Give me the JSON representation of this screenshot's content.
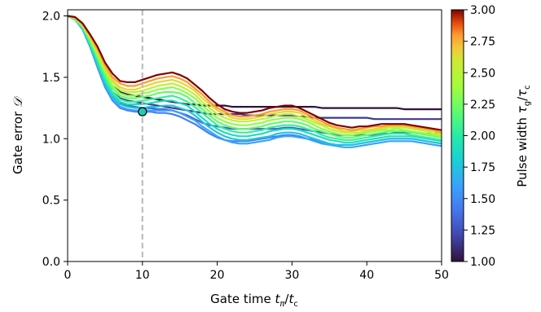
{
  "chart_data": {
    "type": "line",
    "xlabel": {
      "main": "Gate time ",
      "var": "t",
      "sub": "π",
      "slash": "/",
      "var2": "t",
      "sub2": "c"
    },
    "ylabel": {
      "main": "Gate error ",
      "var": "𝒟"
    },
    "xlim": [
      0,
      50
    ],
    "ylim": [
      0,
      2.05
    ],
    "xticks": [
      0,
      10,
      20,
      30,
      40,
      50
    ],
    "xtick_labels": [
      "0",
      "10",
      "20",
      "30",
      "40",
      "50"
    ],
    "yticks": [
      0.0,
      0.5,
      1.0,
      1.5,
      2.0
    ],
    "ytick_labels": [
      "0.0",
      "0.5",
      "1.0",
      "1.5",
      "2.0"
    ],
    "vline_x": 10,
    "marker": {
      "x": 10,
      "y": 1.22
    },
    "colorbar": {
      "label": {
        "main": "Pulse width ",
        "var": "τ",
        "sub": "g",
        "slash": "/",
        "var2": "τ",
        "sub2": "c"
      },
      "min": 1.0,
      "max": 3.0,
      "ticks": [
        1.0,
        1.25,
        1.5,
        1.75,
        2.0,
        2.25,
        2.5,
        2.75,
        3.0
      ],
      "tick_labels": [
        "1.00",
        "1.25",
        "1.50",
        "1.75",
        "2.00",
        "2.25",
        "2.50",
        "2.75",
        "3.00"
      ],
      "colormap": "turbo"
    },
    "x": [
      0,
      1,
      2,
      3,
      4,
      5,
      6,
      7,
      8,
      9,
      10,
      11,
      12,
      13,
      14,
      15,
      16,
      17,
      18,
      19,
      20,
      21,
      22,
      23,
      24,
      25,
      26,
      27,
      28,
      29,
      30,
      31,
      32,
      33,
      34,
      35,
      36,
      37,
      38,
      39,
      40,
      41,
      42,
      43,
      44,
      45,
      46,
      47,
      48,
      49,
      50
    ],
    "series": [
      {
        "param": 1.0,
        "values": [
          2.0,
          1.98,
          1.92,
          1.8,
          1.66,
          1.52,
          1.43,
          1.38,
          1.36,
          1.35,
          1.34,
          1.33,
          1.32,
          1.31,
          1.3,
          1.29,
          1.28,
          1.28,
          1.27,
          1.27,
          1.27,
          1.27,
          1.26,
          1.26,
          1.26,
          1.26,
          1.26,
          1.26,
          1.26,
          1.26,
          1.26,
          1.26,
          1.26,
          1.26,
          1.25,
          1.25,
          1.25,
          1.25,
          1.25,
          1.25,
          1.25,
          1.25,
          1.25,
          1.25,
          1.25,
          1.24,
          1.24,
          1.24,
          1.24,
          1.24,
          1.24
        ]
      },
      {
        "param": 1.15,
        "values": [
          2.0,
          1.98,
          1.91,
          1.78,
          1.63,
          1.48,
          1.38,
          1.33,
          1.31,
          1.3,
          1.29,
          1.28,
          1.27,
          1.26,
          1.25,
          1.24,
          1.23,
          1.22,
          1.21,
          1.2,
          1.2,
          1.2,
          1.2,
          1.2,
          1.19,
          1.19,
          1.19,
          1.19,
          1.19,
          1.19,
          1.19,
          1.18,
          1.18,
          1.17,
          1.17,
          1.17,
          1.17,
          1.17,
          1.17,
          1.17,
          1.17,
          1.16,
          1.16,
          1.16,
          1.16,
          1.16,
          1.16,
          1.16,
          1.16,
          1.16,
          1.16
        ]
      },
      {
        "param": 1.3,
        "values": [
          2.0,
          1.97,
          1.9,
          1.76,
          1.6,
          1.44,
          1.34,
          1.29,
          1.27,
          1.26,
          1.25,
          1.25,
          1.24,
          1.24,
          1.23,
          1.21,
          1.19,
          1.16,
          1.13,
          1.11,
          1.1,
          1.09,
          1.08,
          1.08,
          1.08,
          1.08,
          1.08,
          1.08,
          1.08,
          1.09,
          1.09,
          1.08,
          1.07,
          1.06,
          1.05,
          1.04,
          1.03,
          1.03,
          1.03,
          1.03,
          1.03,
          1.03,
          1.04,
          1.04,
          1.05,
          1.05,
          1.05,
          1.05,
          1.04,
          1.04,
          1.04
        ]
      },
      {
        "param": 1.45,
        "values": [
          2.0,
          1.97,
          1.89,
          1.75,
          1.58,
          1.42,
          1.31,
          1.25,
          1.23,
          1.22,
          1.22,
          1.22,
          1.21,
          1.21,
          1.2,
          1.18,
          1.15,
          1.12,
          1.08,
          1.04,
          1.01,
          0.99,
          0.98,
          0.98,
          0.98,
          0.99,
          1.0,
          1.01,
          1.02,
          1.03,
          1.03,
          1.02,
          1.0,
          0.99,
          0.97,
          0.96,
          0.95,
          0.95,
          0.95,
          0.96,
          0.97,
          0.98,
          0.99,
          1.0,
          1.0,
          1.0,
          1.0,
          0.99,
          0.98,
          0.97,
          0.96
        ]
      },
      {
        "param": 1.6,
        "values": [
          2.0,
          1.97,
          1.89,
          1.75,
          1.59,
          1.43,
          1.32,
          1.26,
          1.24,
          1.23,
          1.23,
          1.23,
          1.23,
          1.23,
          1.23,
          1.21,
          1.18,
          1.15,
          1.1,
          1.06,
          1.02,
          0.99,
          0.97,
          0.96,
          0.96,
          0.97,
          0.98,
          0.99,
          1.01,
          1.02,
          1.02,
          1.01,
          1.0,
          0.98,
          0.96,
          0.95,
          0.94,
          0.93,
          0.93,
          0.94,
          0.95,
          0.96,
          0.97,
          0.98,
          0.98,
          0.98,
          0.98,
          0.97,
          0.96,
          0.95,
          0.94
        ]
      },
      {
        "param": 1.75,
        "values": [
          2.0,
          1.97,
          1.9,
          1.76,
          1.6,
          1.45,
          1.34,
          1.28,
          1.26,
          1.25,
          1.25,
          1.26,
          1.26,
          1.27,
          1.27,
          1.25,
          1.23,
          1.19,
          1.14,
          1.09,
          1.05,
          1.02,
          1.0,
          0.99,
          0.99,
          1.0,
          1.01,
          1.02,
          1.04,
          1.05,
          1.05,
          1.04,
          1.02,
          1.0,
          0.98,
          0.96,
          0.95,
          0.95,
          0.95,
          0.96,
          0.97,
          0.98,
          0.99,
          1.0,
          1.0,
          1.0,
          1.0,
          0.99,
          0.98,
          0.97,
          0.96
        ]
      },
      {
        "param": 1.9,
        "values": [
          2.0,
          1.97,
          1.9,
          1.77,
          1.62,
          1.47,
          1.36,
          1.3,
          1.28,
          1.28,
          1.28,
          1.29,
          1.3,
          1.31,
          1.31,
          1.29,
          1.27,
          1.22,
          1.17,
          1.12,
          1.08,
          1.05,
          1.03,
          1.02,
          1.02,
          1.03,
          1.04,
          1.06,
          1.07,
          1.08,
          1.08,
          1.07,
          1.05,
          1.03,
          1.01,
          0.99,
          0.98,
          0.97,
          0.97,
          0.98,
          0.99,
          1.0,
          1.01,
          1.02,
          1.02,
          1.02,
          1.02,
          1.01,
          1.0,
          0.99,
          0.98
        ]
      },
      {
        "param": 2.05,
        "values": [
          2.0,
          1.97,
          1.91,
          1.78,
          1.64,
          1.49,
          1.38,
          1.32,
          1.3,
          1.3,
          1.31,
          1.32,
          1.33,
          1.34,
          1.35,
          1.33,
          1.3,
          1.26,
          1.21,
          1.16,
          1.11,
          1.08,
          1.06,
          1.05,
          1.05,
          1.06,
          1.07,
          1.09,
          1.1,
          1.11,
          1.11,
          1.1,
          1.08,
          1.06,
          1.03,
          1.01,
          1.0,
          0.99,
          0.99,
          1.0,
          1.01,
          1.02,
          1.03,
          1.04,
          1.04,
          1.04,
          1.03,
          1.02,
          1.01,
          1.0,
          0.99
        ]
      },
      {
        "param": 2.2,
        "values": [
          2.0,
          1.98,
          1.91,
          1.8,
          1.66,
          1.52,
          1.41,
          1.35,
          1.33,
          1.33,
          1.34,
          1.35,
          1.37,
          1.38,
          1.38,
          1.37,
          1.34,
          1.29,
          1.24,
          1.19,
          1.14,
          1.11,
          1.09,
          1.08,
          1.08,
          1.09,
          1.1,
          1.12,
          1.13,
          1.14,
          1.14,
          1.13,
          1.11,
          1.08,
          1.06,
          1.04,
          1.02,
          1.01,
          1.01,
          1.02,
          1.03,
          1.04,
          1.05,
          1.06,
          1.06,
          1.06,
          1.05,
          1.04,
          1.03,
          1.02,
          1.01
        ]
      },
      {
        "param": 2.35,
        "values": [
          2.0,
          1.98,
          1.92,
          1.81,
          1.68,
          1.54,
          1.43,
          1.37,
          1.35,
          1.35,
          1.37,
          1.38,
          1.4,
          1.41,
          1.42,
          1.4,
          1.37,
          1.33,
          1.27,
          1.22,
          1.17,
          1.14,
          1.12,
          1.11,
          1.11,
          1.12,
          1.13,
          1.15,
          1.16,
          1.17,
          1.17,
          1.16,
          1.14,
          1.11,
          1.08,
          1.06,
          1.04,
          1.03,
          1.03,
          1.04,
          1.05,
          1.06,
          1.07,
          1.07,
          1.08,
          1.07,
          1.06,
          1.05,
          1.04,
          1.03,
          1.02
        ]
      },
      {
        "param": 2.5,
        "values": [
          2.0,
          1.98,
          1.92,
          1.82,
          1.7,
          1.56,
          1.46,
          1.4,
          1.38,
          1.38,
          1.39,
          1.41,
          1.43,
          1.44,
          1.45,
          1.43,
          1.4,
          1.36,
          1.3,
          1.25,
          1.2,
          1.17,
          1.15,
          1.14,
          1.14,
          1.15,
          1.16,
          1.17,
          1.19,
          1.2,
          1.2,
          1.18,
          1.16,
          1.13,
          1.11,
          1.08,
          1.06,
          1.05,
          1.05,
          1.05,
          1.06,
          1.07,
          1.08,
          1.09,
          1.09,
          1.09,
          1.08,
          1.07,
          1.06,
          1.04,
          1.03
        ]
      },
      {
        "param": 2.65,
        "values": [
          2.0,
          1.98,
          1.93,
          1.83,
          1.71,
          1.58,
          1.48,
          1.42,
          1.4,
          1.4,
          1.42,
          1.44,
          1.46,
          1.47,
          1.48,
          1.46,
          1.43,
          1.39,
          1.33,
          1.28,
          1.23,
          1.2,
          1.17,
          1.16,
          1.16,
          1.17,
          1.18,
          1.2,
          1.21,
          1.22,
          1.22,
          1.21,
          1.18,
          1.15,
          1.12,
          1.1,
          1.08,
          1.06,
          1.06,
          1.07,
          1.07,
          1.08,
          1.09,
          1.1,
          1.1,
          1.1,
          1.09,
          1.08,
          1.07,
          1.06,
          1.04
        ]
      },
      {
        "param": 2.8,
        "values": [
          2.0,
          1.99,
          1.93,
          1.84,
          1.73,
          1.6,
          1.5,
          1.45,
          1.43,
          1.43,
          1.45,
          1.47,
          1.49,
          1.5,
          1.51,
          1.49,
          1.46,
          1.41,
          1.36,
          1.3,
          1.25,
          1.22,
          1.19,
          1.18,
          1.18,
          1.19,
          1.2,
          1.22,
          1.23,
          1.24,
          1.24,
          1.23,
          1.2,
          1.17,
          1.14,
          1.11,
          1.09,
          1.08,
          1.07,
          1.08,
          1.09,
          1.1,
          1.1,
          1.11,
          1.11,
          1.11,
          1.1,
          1.09,
          1.08,
          1.07,
          1.05
        ]
      },
      {
        "param": 3.0,
        "values": [
          2.0,
          1.99,
          1.94,
          1.85,
          1.75,
          1.62,
          1.53,
          1.47,
          1.46,
          1.46,
          1.48,
          1.5,
          1.52,
          1.53,
          1.54,
          1.52,
          1.49,
          1.44,
          1.39,
          1.33,
          1.28,
          1.24,
          1.22,
          1.21,
          1.21,
          1.22,
          1.23,
          1.25,
          1.26,
          1.27,
          1.27,
          1.25,
          1.22,
          1.19,
          1.16,
          1.13,
          1.11,
          1.1,
          1.09,
          1.1,
          1.1,
          1.11,
          1.12,
          1.12,
          1.12,
          1.12,
          1.11,
          1.1,
          1.09,
          1.08,
          1.07
        ]
      }
    ]
  }
}
